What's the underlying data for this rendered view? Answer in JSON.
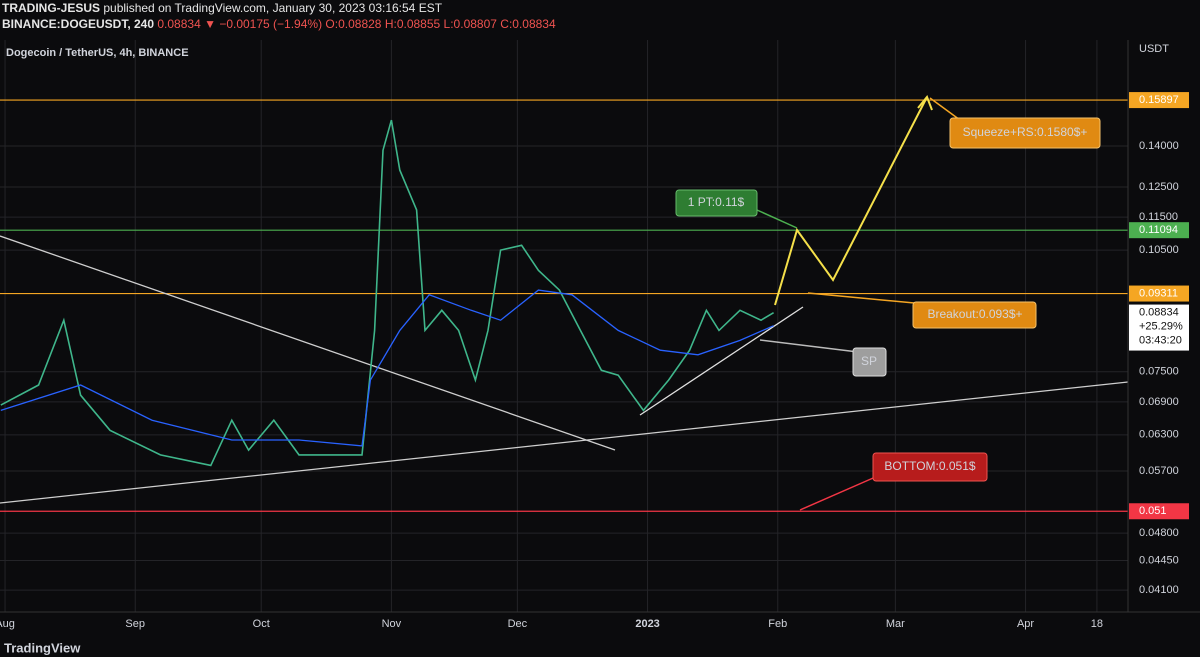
{
  "header": {
    "author": "TRADING-JESUS",
    "published": "published on TradingView.com, January 30, 2023 03:16:54 EST",
    "symbol": "BINANCE:DOGEUSDT, 240",
    "price": "0.08834",
    "change": "▼ −0.00175 (−1.94%)",
    "ohlc": [
      "O:0.08828",
      "H:0.08855",
      "L:0.08807",
      "C:0.08834"
    ],
    "footer": "TradingView"
  },
  "chart_data": {
    "type": "line",
    "title": "Dogecoin / TetherUS, 4h, BINANCE",
    "y_axis_label": "USDT",
    "log_scale": true,
    "grid": true,
    "xlim": [
      -1.2,
      267.4
    ],
    "xticks": [
      {
        "value": 0,
        "label": "Aug"
      },
      {
        "value": 31,
        "label": "Sep"
      },
      {
        "value": 61,
        "label": "Oct"
      },
      {
        "value": 92,
        "label": "Nov"
      },
      {
        "value": 122,
        "label": "Dec"
      },
      {
        "value": 153,
        "label": "2023"
      },
      {
        "value": 184,
        "label": "Feb"
      },
      {
        "value": 212,
        "label": "Mar"
      },
      {
        "value": 243,
        "label": "Apr"
      },
      {
        "value": 260,
        "label": "18"
      }
    ],
    "ylim": [
      0.0386,
      0.1877
    ],
    "yticks": [
      {
        "value": 0.041,
        "label": "0.04100"
      },
      {
        "value": 0.0445,
        "label": "0.04450"
      },
      {
        "value": 0.048,
        "label": "0.04800"
      },
      {
        "value": 0.057,
        "label": "0.05700"
      },
      {
        "value": 0.063,
        "label": "0.06300"
      },
      {
        "value": 0.069,
        "label": "0.06900"
      },
      {
        "value": 0.075,
        "label": "0.07500"
      },
      {
        "value": 0.105,
        "label": "0.10500"
      },
      {
        "value": 0.115,
        "label": "0.11500"
      },
      {
        "value": 0.125,
        "label": "0.12500"
      },
      {
        "value": 0.14,
        "label": "0.14000"
      }
    ],
    "series": [
      {
        "name": "DOGEUSDT",
        "color": "#3fb68b",
        "x": [
          -1,
          8,
          14,
          18,
          25,
          37,
          49,
          54,
          58,
          64,
          70,
          77,
          85,
          88,
          90,
          92,
          94,
          98,
          100,
          104,
          108,
          112,
          115,
          118,
          123,
          127,
          132,
          137,
          142,
          146,
          152,
          158,
          163,
          167,
          170,
          175,
          180,
          183
        ],
        "values": [
          0.0684,
          0.0723,
          0.0865,
          0.0703,
          0.0638,
          0.0596,
          0.0579,
          0.0656,
          0.0604,
          0.0656,
          0.0596,
          0.0596,
          0.0596,
          0.0841,
          0.1384,
          0.1504,
          0.131,
          0.1173,
          0.0841,
          0.0889,
          0.0841,
          0.0733,
          0.0841,
          0.105,
          0.1064,
          0.0993,
          0.094,
          0.0841,
          0.0753,
          0.0743,
          0.0674,
          0.0733,
          0.0796,
          0.0889,
          0.0841,
          0.0889,
          0.0865,
          0.0883
        ]
      },
      {
        "name": "MA",
        "color": "#2962ff",
        "x": [
          -1,
          18,
          35,
          54,
          70,
          85,
          87,
          94,
          101,
          111,
          118,
          127,
          135,
          146,
          156,
          165,
          175,
          183
        ],
        "values": [
          0.0674,
          0.0723,
          0.0656,
          0.0621,
          0.0621,
          0.0611,
          0.0733,
          0.0841,
          0.0928,
          0.0889,
          0.0865,
          0.094,
          0.0928,
          0.0841,
          0.0796,
          0.0786,
          0.0818,
          0.0852
        ]
      }
    ],
    "levels": [
      {
        "value": 0.15897,
        "color": "#f5a623"
      },
      {
        "value": 0.11094,
        "color": "#4caf50"
      },
      {
        "value": 0.09311,
        "color": "#f5a623"
      },
      {
        "value": 0.051,
        "color": "#f23645"
      }
    ],
    "last": {
      "value": 0.08834,
      "change": "+25.29%",
      "countdown": "03:43:20"
    },
    "annotations": [
      "Squeeze+RS:0.1580$+",
      "1 PT:0.11$",
      "Breakout:0.093$+",
      "SP",
      "BOTTOM:0.051$"
    ]
  }
}
